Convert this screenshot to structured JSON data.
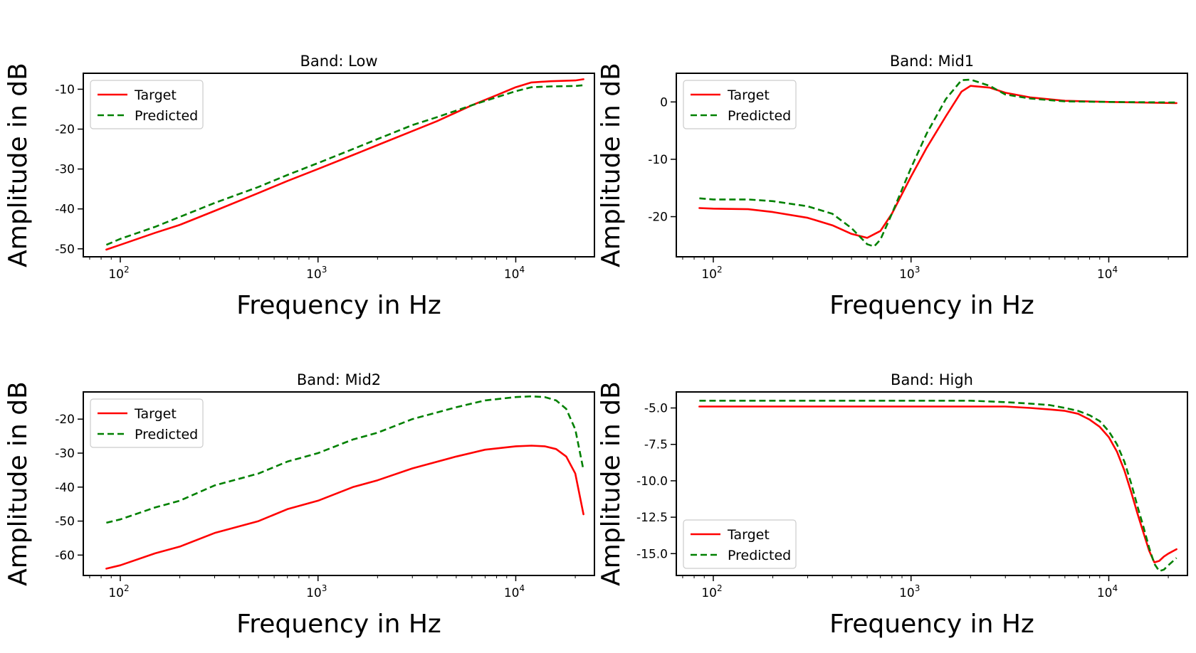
{
  "chart_data": [
    {
      "type": "line",
      "title": "Band: Low",
      "xlabel": "Frequency in Hz",
      "ylabel": "Amplitude in dB",
      "xscale": "log",
      "xlim": [
        65,
        25000
      ],
      "ylim": [
        -52,
        -6
      ],
      "xticks": [
        {
          "value": 100,
          "label": "10",
          "exp": "2"
        },
        {
          "value": 1000,
          "label": "10",
          "exp": "3"
        },
        {
          "value": 10000,
          "label": "10",
          "exp": "4"
        }
      ],
      "yticks": [
        {
          "value": -10,
          "label": "-10"
        },
        {
          "value": -20,
          "label": "-20"
        },
        {
          "value": -30,
          "label": "-30"
        },
        {
          "value": -40,
          "label": "-40"
        },
        {
          "value": -50,
          "label": "-50"
        }
      ],
      "legend_position": "top-left",
      "series": [
        {
          "name": "Target",
          "color": "#ff0000",
          "style": "solid",
          "x": [
            85,
            100,
            150,
            200,
            300,
            500,
            700,
            1000,
            1500,
            2000,
            3000,
            4000,
            6000,
            8000,
            10000,
            12000,
            15000,
            20000,
            22000
          ],
          "y": [
            -50.2,
            -49,
            -46,
            -44,
            -40.5,
            -36,
            -33,
            -30,
            -26.5,
            -24,
            -20.5,
            -18,
            -14,
            -11.5,
            -9.5,
            -8.3,
            -8,
            -7.8,
            -7.5
          ]
        },
        {
          "name": "Predicted",
          "color": "#008000",
          "style": "dashed",
          "x": [
            85,
            100,
            150,
            200,
            300,
            500,
            700,
            1000,
            1500,
            2000,
            3000,
            4000,
            6000,
            8000,
            10000,
            12000,
            15000,
            20000,
            22000
          ],
          "y": [
            -49,
            -47.5,
            -44.5,
            -42,
            -38.5,
            -34.5,
            -31.5,
            -28.5,
            -25,
            -22.5,
            -19,
            -17,
            -14,
            -12,
            -10.5,
            -9.5,
            -9.3,
            -9.2,
            -9.0
          ]
        }
      ]
    },
    {
      "type": "line",
      "title": "Band: Mid1",
      "xlabel": "Frequency in Hz",
      "ylabel": "Amplitude in dB",
      "xscale": "log",
      "xlim": [
        65,
        25000
      ],
      "ylim": [
        -27,
        5
      ],
      "xticks": [
        {
          "value": 100,
          "label": "10",
          "exp": "2"
        },
        {
          "value": 1000,
          "label": "10",
          "exp": "3"
        },
        {
          "value": 10000,
          "label": "10",
          "exp": "4"
        }
      ],
      "yticks": [
        {
          "value": 0,
          "label": "0"
        },
        {
          "value": -10,
          "label": "-10"
        },
        {
          "value": -20,
          "label": "-20"
        }
      ],
      "legend_position": "top-left",
      "series": [
        {
          "name": "Target",
          "color": "#ff0000",
          "style": "solid",
          "x": [
            85,
            100,
            150,
            200,
            300,
            400,
            500,
            600,
            700,
            800,
            1000,
            1200,
            1500,
            1800,
            2000,
            2500,
            3000,
            4000,
            6000,
            10000,
            22000
          ],
          "y": [
            -18.5,
            -18.6,
            -18.7,
            -19.2,
            -20.2,
            -21.5,
            -23,
            -23.7,
            -22.5,
            -19.5,
            -13,
            -8,
            -2.5,
            1.8,
            2.8,
            2.5,
            1.6,
            0.8,
            0.2,
            0,
            -0.2
          ]
        },
        {
          "name": "Predicted",
          "color": "#008000",
          "style": "dashed",
          "x": [
            85,
            100,
            150,
            200,
            300,
            400,
            500,
            600,
            650,
            700,
            800,
            1000,
            1200,
            1500,
            1800,
            2000,
            2500,
            3000,
            4000,
            6000,
            10000,
            22000
          ],
          "y": [
            -16.8,
            -17,
            -17,
            -17.3,
            -18.2,
            -19.5,
            -22,
            -24.8,
            -25.2,
            -24,
            -19.5,
            -11.5,
            -5.5,
            0.5,
            3.8,
            3.9,
            2.8,
            1.3,
            0.6,
            0.1,
            0,
            -0.1
          ]
        }
      ]
    },
    {
      "type": "line",
      "title": "Band: Mid2",
      "xlabel": "Frequency in Hz",
      "ylabel": "Amplitude in dB",
      "xscale": "log",
      "xlim": [
        65,
        25000
      ],
      "ylim": [
        -66,
        -12
      ],
      "xticks": [
        {
          "value": 100,
          "label": "10",
          "exp": "2"
        },
        {
          "value": 1000,
          "label": "10",
          "exp": "3"
        },
        {
          "value": 10000,
          "label": "10",
          "exp": "4"
        }
      ],
      "yticks": [
        {
          "value": -20,
          "label": "-20"
        },
        {
          "value": -30,
          "label": "-30"
        },
        {
          "value": -40,
          "label": "-40"
        },
        {
          "value": -50,
          "label": "-50"
        },
        {
          "value": -60,
          "label": "-60"
        }
      ],
      "legend_position": "top-left",
      "series": [
        {
          "name": "Target",
          "color": "#ff0000",
          "style": "solid",
          "x": [
            85,
            100,
            150,
            200,
            300,
            500,
            700,
            1000,
            1500,
            2000,
            3000,
            5000,
            7000,
            10000,
            12000,
            14000,
            16000,
            18000,
            20000,
            22000
          ],
          "y": [
            -64,
            -63,
            -59.5,
            -57.5,
            -53.5,
            -50,
            -46.5,
            -44,
            -40,
            -38,
            -34.5,
            -31,
            -29,
            -28,
            -27.8,
            -28,
            -28.8,
            -31,
            -36,
            -48
          ]
        },
        {
          "name": "Predicted",
          "color": "#008000",
          "style": "dashed",
          "x": [
            85,
            100,
            150,
            200,
            300,
            500,
            700,
            1000,
            1500,
            2000,
            3000,
            5000,
            7000,
            10000,
            12000,
            14000,
            16000,
            18000,
            20000,
            22000
          ],
          "y": [
            -50.5,
            -49.5,
            -46,
            -44,
            -39.5,
            -36,
            -32.5,
            -30,
            -26,
            -24,
            -20,
            -16.5,
            -14.5,
            -13.5,
            -13.3,
            -13.5,
            -14.5,
            -17,
            -23,
            -35
          ]
        }
      ]
    },
    {
      "type": "line",
      "title": "Band: High",
      "xlabel": "Frequency in Hz",
      "ylabel": "Amplitude in dB",
      "xscale": "log",
      "xlim": [
        65,
        25000
      ],
      "ylim": [
        -16.5,
        -3.9
      ],
      "xticks": [
        {
          "value": 100,
          "label": "10",
          "exp": "2"
        },
        {
          "value": 1000,
          "label": "10",
          "exp": "3"
        },
        {
          "value": 10000,
          "label": "10",
          "exp": "4"
        }
      ],
      "yticks": [
        {
          "value": -5.0,
          "label": "-5.0"
        },
        {
          "value": -7.5,
          "label": "-7.5"
        },
        {
          "value": -10.0,
          "label": "-10.0"
        },
        {
          "value": -12.5,
          "label": "-12.5"
        },
        {
          "value": -15.0,
          "label": "-15.0"
        }
      ],
      "legend_position": "bottom-left",
      "series": [
        {
          "name": "Target",
          "color": "#ff0000",
          "style": "solid",
          "x": [
            85,
            150,
            300,
            600,
            1000,
            2000,
            3000,
            4000,
            5000,
            6000,
            7000,
            8000,
            9000,
            10000,
            11000,
            12000,
            13000,
            14000,
            15000,
            16000,
            17000,
            18000,
            19000,
            20000,
            22000
          ],
          "y": [
            -4.9,
            -4.9,
            -4.9,
            -4.9,
            -4.9,
            -4.9,
            -4.9,
            -5.0,
            -5.1,
            -5.2,
            -5.4,
            -5.8,
            -6.3,
            -7.0,
            -8.0,
            -9.3,
            -10.8,
            -12.3,
            -13.6,
            -14.8,
            -15.6,
            -15.5,
            -15.2,
            -15.0,
            -14.7
          ]
        },
        {
          "name": "Predicted",
          "color": "#008000",
          "style": "dashed",
          "x": [
            85,
            150,
            300,
            600,
            1000,
            2000,
            3000,
            4000,
            5000,
            6000,
            7000,
            8000,
            9000,
            10000,
            11000,
            12000,
            13000,
            14000,
            15000,
            16000,
            17000,
            18000,
            19000,
            20000,
            22000
          ],
          "y": [
            -4.5,
            -4.5,
            -4.5,
            -4.5,
            -4.5,
            -4.5,
            -4.6,
            -4.7,
            -4.8,
            -5.0,
            -5.2,
            -5.5,
            -5.9,
            -6.6,
            -7.5,
            -8.7,
            -10.2,
            -11.8,
            -13.2,
            -14.6,
            -15.7,
            -16.2,
            -16.1,
            -15.8,
            -15.3
          ]
        }
      ]
    }
  ]
}
